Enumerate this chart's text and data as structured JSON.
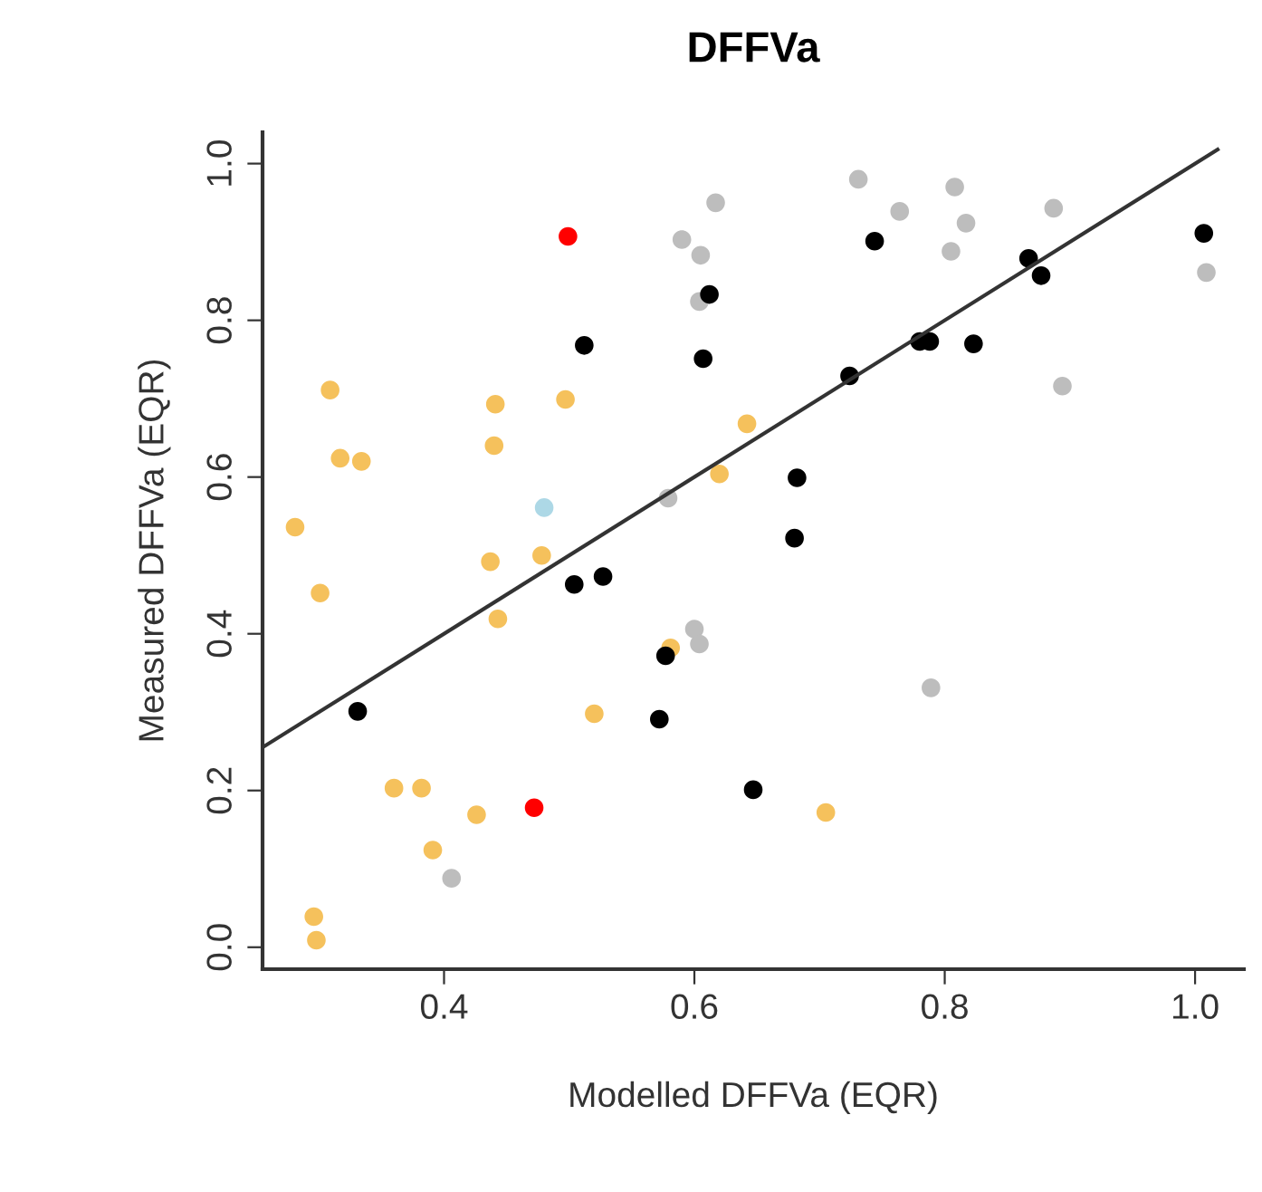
{
  "chart_data": {
    "type": "scatter",
    "title": "DFFVa",
    "xlabel": "Modelled DFFVa (EQR)",
    "ylabel": "Measured DFFVa (EQR)",
    "xlim": [
      0.255,
      1.039
    ],
    "ylim": [
      -0.028,
      1.04
    ],
    "xticks": [
      0.4,
      0.6,
      0.8,
      {
        "value": 1.0,
        "label": "1.0"
      }
    ],
    "yticks": [
      {
        "value": 0,
        "label": "0.0"
      },
      0.2,
      0.4,
      0.6,
      0.8,
      {
        "value": 1.0,
        "label": "1.0"
      }
    ],
    "grid": false,
    "marker": "circle",
    "series": [
      {
        "color": "#f5c15c",
        "x": [
          0.309,
          0.441,
          0.497,
          0.642,
          0.44,
          0.317,
          0.334,
          0.62,
          0.281,
          0.437,
          0.478,
          0.301,
          0.443,
          0.581,
          0.52,
          0.36,
          0.382,
          0.426,
          0.391,
          0.296,
          0.298,
          0.705
        ],
        "values": [
          0.711,
          0.693,
          0.699,
          0.668,
          0.64,
          0.624,
          0.62,
          0.604,
          0.536,
          0.492,
          0.5,
          0.452,
          0.419,
          0.382,
          0.298,
          0.203,
          0.203,
          0.169,
          0.124,
          0.039,
          0.009,
          0.172
        ]
      },
      {
        "color": "#bdbdbd",
        "x": [
          0.617,
          0.59,
          0.605,
          0.604,
          0.579,
          0.6,
          0.604,
          0.406,
          0.731,
          0.808,
          0.764,
          0.887,
          0.817,
          0.805,
          1.009,
          0.894,
          0.789
        ],
        "values": [
          0.95,
          0.903,
          0.883,
          0.824,
          0.573,
          0.406,
          0.387,
          0.088,
          0.98,
          0.97,
          0.939,
          0.943,
          0.924,
          0.888,
          0.861,
          0.716,
          0.331
        ]
      },
      {
        "color": "#000000",
        "x": [
          0.612,
          0.512,
          0.607,
          0.504,
          0.527,
          0.577,
          0.331,
          0.572,
          0.647,
          0.744,
          1.007,
          0.867,
          0.877,
          0.78,
          0.788,
          0.823,
          0.724,
          0.682,
          0.68
        ],
        "values": [
          0.833,
          0.768,
          0.751,
          0.463,
          0.473,
          0.372,
          0.301,
          0.291,
          0.201,
          0.901,
          0.911,
          0.879,
          0.857,
          0.773,
          0.773,
          0.77,
          0.729,
          0.599,
          0.522
        ]
      },
      {
        "color": "#ff0000",
        "x": [
          0.499,
          0.472
        ],
        "values": [
          0.907,
          0.178
        ]
      },
      {
        "color": "#add8e6",
        "x": [
          0.48
        ],
        "values": [
          0.561
        ]
      },
      {
        "type": "line",
        "color": "#333333",
        "marker": "none",
        "line_style": "solid",
        "x": [
          0.255,
          1.018
        ],
        "values": [
          0.255,
          1.018
        ]
      }
    ]
  }
}
